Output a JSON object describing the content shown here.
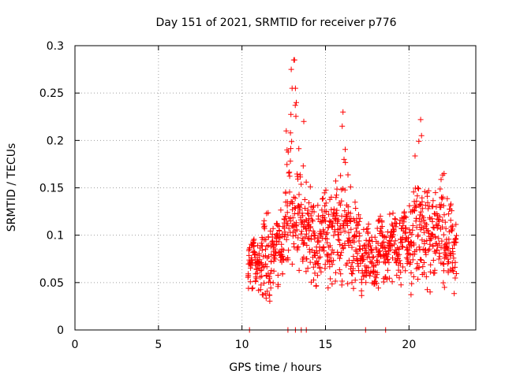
{
  "chart_data": {
    "type": "scatter",
    "title": "Day 151 of 2021, SRMTID for receiver p776",
    "xlabel": "GPS time / hours",
    "ylabel": "SRMTID / TECUs",
    "xlim": [
      0,
      24
    ],
    "ylim": [
      0,
      0.3
    ],
    "xticks": [
      0,
      5,
      10,
      15,
      20
    ],
    "yticks": [
      0,
      0.05,
      0.1,
      0.15,
      0.2,
      0.25,
      0.3
    ],
    "xtick_labels": [
      "0",
      "5",
      "10",
      "15",
      "20"
    ],
    "ytick_labels": [
      "0",
      "0.05",
      "0.1",
      "0.15",
      "0.2",
      "0.25",
      "0.3"
    ],
    "grid": true,
    "marker": "+",
    "color": "#ff0000",
    "series": [
      {
        "name": "SRMTID",
        "x_start": 10.35,
        "x_end": 22.85,
        "approx_point_count": 1100,
        "envelope": [
          {
            "x": 10.4,
            "low": 0.04,
            "mid": 0.07,
            "high": 0.09
          },
          {
            "x": 11.0,
            "low": 0.04,
            "mid": 0.075,
            "high": 0.1
          },
          {
            "x": 11.5,
            "low": 0.025,
            "mid": 0.08,
            "high": 0.125
          },
          {
            "x": 12.0,
            "low": 0.04,
            "mid": 0.085,
            "high": 0.11
          },
          {
            "x": 12.5,
            "low": 0.055,
            "mid": 0.1,
            "high": 0.135
          },
          {
            "x": 13.0,
            "low": 0.07,
            "mid": 0.14,
            "high": 0.28
          },
          {
            "x": 13.5,
            "low": 0.06,
            "mid": 0.12,
            "high": 0.2
          },
          {
            "x": 14.0,
            "low": 0.04,
            "mid": 0.1,
            "high": 0.16
          },
          {
            "x": 14.5,
            "low": 0.05,
            "mid": 0.095,
            "high": 0.14
          },
          {
            "x": 15.0,
            "low": 0.04,
            "mid": 0.1,
            "high": 0.155
          },
          {
            "x": 15.5,
            "low": 0.05,
            "mid": 0.11,
            "high": 0.15
          },
          {
            "x": 16.0,
            "low": 0.05,
            "mid": 0.12,
            "high": 0.225
          },
          {
            "x": 16.5,
            "low": 0.045,
            "mid": 0.1,
            "high": 0.16
          },
          {
            "x": 17.0,
            "low": 0.04,
            "mid": 0.085,
            "high": 0.12
          },
          {
            "x": 17.5,
            "low": 0.035,
            "mid": 0.075,
            "high": 0.11
          },
          {
            "x": 18.0,
            "low": 0.04,
            "mid": 0.085,
            "high": 0.12
          },
          {
            "x": 18.5,
            "low": 0.05,
            "mid": 0.09,
            "high": 0.12
          },
          {
            "x": 19.0,
            "low": 0.05,
            "mid": 0.09,
            "high": 0.125
          },
          {
            "x": 19.5,
            "low": 0.045,
            "mid": 0.095,
            "high": 0.12
          },
          {
            "x": 20.0,
            "low": 0.035,
            "mid": 0.09,
            "high": 0.13
          },
          {
            "x": 20.5,
            "low": 0.05,
            "mid": 0.11,
            "high": 0.22
          },
          {
            "x": 21.0,
            "low": 0.04,
            "mid": 0.1,
            "high": 0.15
          },
          {
            "x": 21.5,
            "low": 0.035,
            "mid": 0.1,
            "high": 0.14
          },
          {
            "x": 22.0,
            "low": 0.05,
            "mid": 0.105,
            "high": 0.165
          },
          {
            "x": 22.5,
            "low": 0.04,
            "mid": 0.09,
            "high": 0.14
          },
          {
            "x": 22.85,
            "low": 0.035,
            "mid": 0.085,
            "high": 0.12
          }
        ],
        "peaks": [
          {
            "x": 13.1,
            "y": 0.285
          },
          {
            "x": 13.15,
            "y": 0.285
          },
          {
            "x": 12.95,
            "y": 0.275
          },
          {
            "x": 13.0,
            "y": 0.255
          },
          {
            "x": 13.2,
            "y": 0.255
          },
          {
            "x": 13.25,
            "y": 0.24
          },
          {
            "x": 16.05,
            "y": 0.23
          },
          {
            "x": 16.0,
            "y": 0.215
          },
          {
            "x": 20.7,
            "y": 0.222
          },
          {
            "x": 20.75,
            "y": 0.205
          },
          {
            "x": 13.7,
            "y": 0.22
          },
          {
            "x": 12.65,
            "y": 0.21
          },
          {
            "x": 12.7,
            "y": 0.19
          },
          {
            "x": 22.1,
            "y": 0.165
          }
        ],
        "zero_values": [
          {
            "x": 10.45,
            "y": 0.0
          },
          {
            "x": 12.75,
            "y": 0.0
          },
          {
            "x": 13.2,
            "y": 0.0
          },
          {
            "x": 13.55,
            "y": 0.0
          },
          {
            "x": 13.85,
            "y": 0.0
          },
          {
            "x": 17.4,
            "y": 0.0
          },
          {
            "x": 18.6,
            "y": 0.0
          }
        ]
      }
    ]
  }
}
